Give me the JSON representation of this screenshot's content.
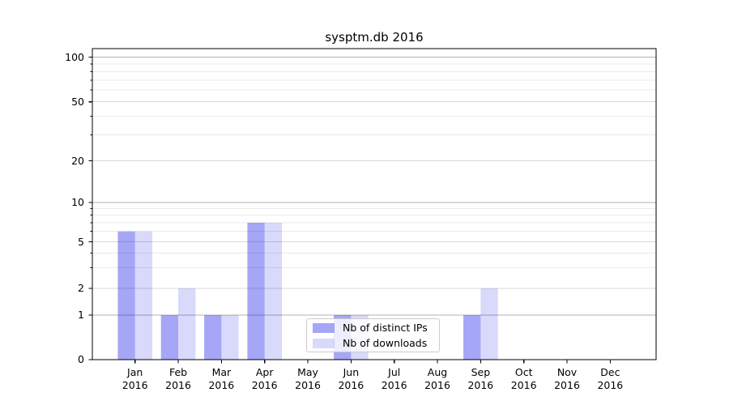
{
  "figure": {
    "title": "sysptm.db 2016"
  },
  "chart_data": {
    "type": "bar",
    "title": "sysptm.db 2016",
    "categories": [
      "Jan",
      "Feb",
      "Mar",
      "Apr",
      "May",
      "Jun",
      "Jul",
      "Aug",
      "Sep",
      "Oct",
      "Nov",
      "Dec"
    ],
    "category_sublabel": "2016",
    "series": [
      {
        "name": "Nb of distinct IPs",
        "color": "rgba(0,0,230,0.35)",
        "values": [
          6,
          1,
          1,
          7,
          0,
          1,
          0,
          0,
          1,
          0,
          0,
          0
        ]
      },
      {
        "name": "Nb of downloads",
        "color": "rgba(0,0,225,0.15)",
        "values": [
          6,
          2,
          1,
          7,
          0,
          1,
          0,
          0,
          2,
          0,
          0,
          0
        ]
      }
    ],
    "yaxis": {
      "ticks": [
        0,
        1,
        2,
        5,
        10,
        20,
        50,
        100
      ],
      "major_ticks": [
        1,
        10,
        100
      ],
      "minor_gridlines": [
        3,
        4,
        6,
        7,
        8,
        9,
        30,
        40,
        60,
        70,
        80,
        90
      ],
      "scale": "log-like",
      "range": [
        0,
        110
      ]
    },
    "xlabel": "",
    "ylabel": "",
    "grid": true,
    "legend_position": "inside-bottom-center",
    "colors": {
      "major_grid": "#b3b3b3",
      "labeled_grid": "#d9d9d9",
      "minor_grid": "#e9e9e9",
      "axis": "#000000"
    }
  }
}
